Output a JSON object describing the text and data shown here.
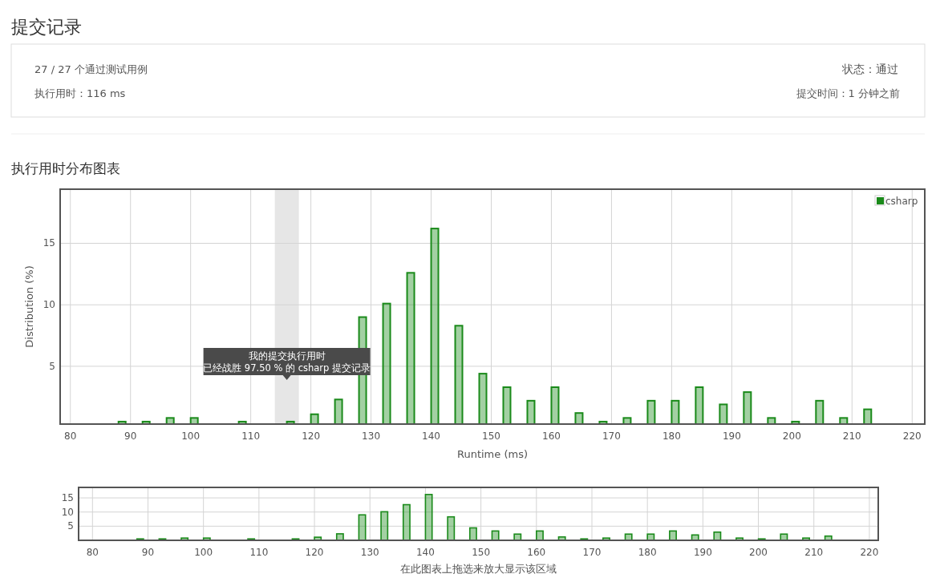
{
  "chart_data": [
    {
      "type": "bar",
      "title": "执行用时分布图表",
      "xlabel": "Runtime (ms)",
      "ylabel": "Distribution (%)",
      "x": [
        88,
        92,
        96,
        100,
        108,
        116,
        120,
        124,
        128,
        132,
        136,
        140,
        144,
        148,
        152,
        156,
        160,
        164,
        168,
        172,
        176,
        180,
        184,
        188,
        192,
        196,
        200,
        204,
        208,
        212
      ],
      "series": [
        {
          "name": "csharp",
          "color": "#1a8a1a",
          "values": [
            0.5,
            0.5,
            0.8,
            0.8,
            0.5,
            0.5,
            1.1,
            2.3,
            9.0,
            10.1,
            12.6,
            16.2,
            8.3,
            4.4,
            3.3,
            2.2,
            3.3,
            1.2,
            0.5,
            0.8,
            2.2,
            2.2,
            3.3,
            1.9,
            2.9,
            0.8,
            0.5,
            2.2,
            0.8,
            1.5
          ]
        }
      ],
      "xlim": [
        78.3,
        222.1
      ],
      "xticks": [
        80,
        90,
        100,
        110,
        120,
        130,
        140,
        150,
        160,
        170,
        180,
        190,
        200,
        210,
        220
      ],
      "ylim": [
        0.3,
        19.4
      ],
      "yticks": [
        5,
        10,
        15
      ],
      "grid": true,
      "legend": "top right",
      "bands": [
        {
          "axis": "x",
          "from": 114,
          "to": 118,
          "label": "我的提交执行用时",
          "color": "#e6e6e6"
        }
      ],
      "annotations": [
        "提交记录",
        "27 / 27 个通过测试用例",
        "执行用时：116 ms",
        "状态：通过",
        "提交时间：1 分钟之前",
        "已经战胜 97.50 % 的 csharp 提交记录"
      ]
    },
    {
      "type": "bar",
      "xlabel": "在此图表上拖选来放大显示该区域",
      "x": [
        88,
        92,
        96,
        100,
        108,
        116,
        120,
        124,
        128,
        132,
        136,
        140,
        144,
        148,
        152,
        156,
        160,
        164,
        168,
        172,
        176,
        180,
        184,
        188,
        192,
        196,
        200,
        204,
        208,
        212
      ],
      "series": [
        {
          "color": "#1a8a1a",
          "values": [
            0.5,
            0.5,
            0.8,
            0.8,
            0.5,
            0.5,
            1.1,
            2.3,
            9.0,
            10.1,
            12.6,
            16.2,
            8.3,
            4.4,
            3.3,
            2.2,
            3.3,
            1.2,
            0.5,
            0.8,
            2.2,
            2.2,
            3.3,
            1.9,
            2.9,
            0.8,
            0.5,
            2.2,
            0.8,
            1.5
          ]
        }
      ],
      "xlim": [
        77.5,
        221.6
      ],
      "xticks": [
        80,
        90,
        100,
        110,
        120,
        130,
        140,
        150,
        160,
        170,
        180,
        190,
        200,
        210,
        220
      ],
      "ylim": [
        0,
        18.7
      ],
      "yticks": [
        5,
        10,
        15
      ],
      "grid": true
    }
  ]
}
